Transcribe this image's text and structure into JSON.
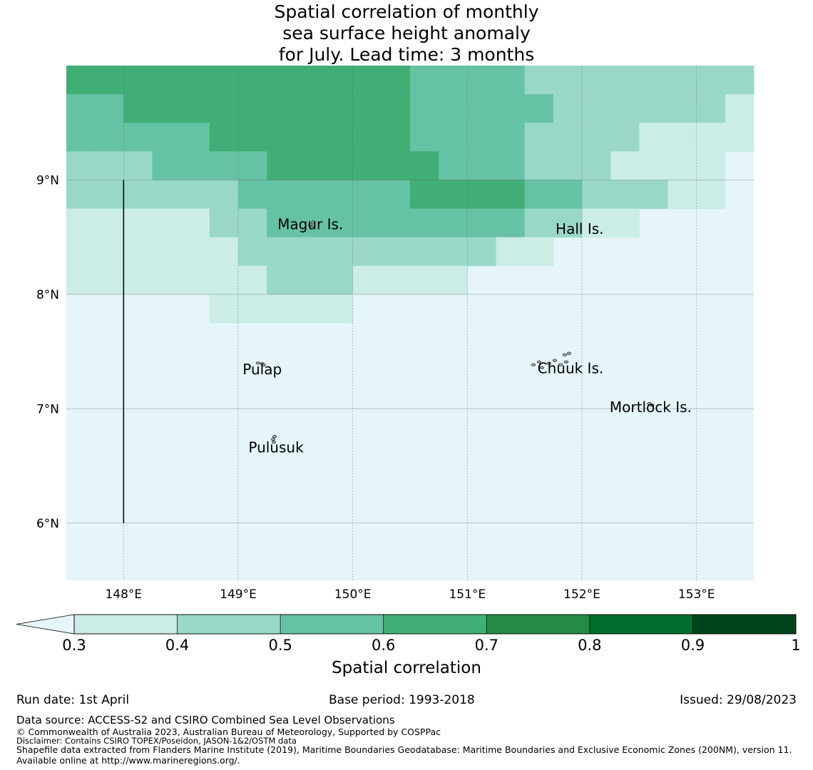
{
  "title_lines": [
    "Spatial correlation of monthly",
    "sea surface height anomaly",
    "for July. Lead time: 3 months"
  ],
  "map": {
    "lon_range": [
      147.5,
      153.5
    ],
    "lat_range": [
      5.5,
      10.0
    ],
    "lon_ticks": [
      148,
      149,
      150,
      151,
      152,
      153
    ],
    "lon_tick_labels": [
      "148°E",
      "149°E",
      "150°E",
      "151°E",
      "152°E",
      "153°E"
    ],
    "lat_ticks": [
      6,
      7,
      8,
      9
    ],
    "lat_tick_labels": [
      "6°N",
      "7°N",
      "8°N",
      "9°N"
    ],
    "grid": true,
    "boundary_line": {
      "lon": 148.0,
      "lat_from": 6.0,
      "lat_to": 9.0
    },
    "cell_lon_edges": [
      147.5,
      147.875,
      148.25,
      148.625,
      149.0,
      149.375,
      149.75,
      150.125,
      150.5,
      150.875,
      151.25,
      151.625,
      152.0,
      152.375,
      152.75,
      153.125,
      153.5
    ],
    "cell_lat_edges": [
      10.0,
      9.75,
      9.5,
      9.25,
      9.0,
      8.75,
      8.5,
      8.25,
      8.0,
      7.75,
      7.5,
      7.25,
      7.0,
      6.75,
      6.5,
      6.25,
      6.0,
      5.75,
      5.5
    ],
    "correlation_classes_by_row": [
      [
        4,
        4,
        4,
        4,
        4,
        4,
        4,
        4,
        4,
        4,
        4,
        4,
        3,
        3,
        3,
        3,
        2,
        2,
        2,
        2,
        2,
        2,
        2,
        2
      ],
      [
        3,
        3,
        4,
        4,
        4,
        4,
        4,
        4,
        4,
        4,
        4,
        4,
        3,
        3,
        3,
        3,
        3,
        2,
        2,
        2,
        2,
        2,
        2,
        1
      ],
      [
        3,
        3,
        3,
        3,
        3,
        4,
        4,
        4,
        4,
        4,
        4,
        4,
        3,
        3,
        3,
        3,
        2,
        2,
        2,
        2,
        1,
        1,
        1,
        1
      ],
      [
        2,
        2,
        2,
        3,
        3,
        3,
        3,
        4,
        4,
        4,
        4,
        4,
        4,
        3,
        3,
        3,
        2,
        2,
        2,
        1,
        1,
        1,
        1,
        0
      ],
      [
        2,
        2,
        2,
        2,
        2,
        2,
        3,
        3,
        3,
        3,
        3,
        3,
        4,
        4,
        4,
        4,
        3,
        3,
        2,
        2,
        2,
        1,
        1,
        0
      ],
      [
        1,
        1,
        1,
        1,
        1,
        2,
        2,
        3,
        3,
        3,
        3,
        3,
        3,
        3,
        3,
        3,
        2,
        2,
        1,
        1,
        0,
        0,
        0,
        0
      ],
      [
        1,
        1,
        1,
        1,
        1,
        1,
        2,
        2,
        2,
        2,
        2,
        2,
        2,
        2,
        2,
        1,
        1,
        0,
        0,
        0,
        0,
        0,
        0,
        0
      ],
      [
        1,
        1,
        1,
        1,
        1,
        1,
        1,
        2,
        2,
        2,
        1,
        1,
        1,
        1,
        0,
        0,
        0,
        0,
        0,
        0,
        0,
        0,
        0,
        0
      ],
      [
        0,
        0,
        0,
        0,
        0,
        1,
        1,
        1,
        1,
        1,
        0,
        0,
        0,
        0,
        0,
        0,
        0,
        0,
        0,
        0,
        0,
        0,
        0,
        0
      ]
    ],
    "correlation_class_row_lats": [
      10.0,
      9.75,
      9.5,
      9.25,
      9.0,
      8.75,
      8.5,
      8.25,
      8.0,
      7.75
    ],
    "correlation_class_lon_edges": [
      147.5,
      147.75,
      148.0,
      148.25,
      148.5,
      148.75,
      149.0,
      149.25,
      149.5,
      149.75,
      150.0,
      150.25,
      150.5,
      150.75,
      151.0,
      151.25,
      151.5,
      151.75,
      152.0,
      152.25,
      152.5,
      152.75,
      153.0,
      153.25,
      153.5
    ],
    "islands": [
      {
        "name": "Magur Is.",
        "lon": 149.63,
        "lat": 8.57
      },
      {
        "name": "Hall Is.",
        "lon": 151.98,
        "lat": 8.53
      },
      {
        "name": "Pulap",
        "lon": 149.21,
        "lat": 7.3
      },
      {
        "name": "Chuuk Is.",
        "lon": 151.9,
        "lat": 7.31
      },
      {
        "name": "Mortlock Is.",
        "lon": 152.6,
        "lat": 6.97
      },
      {
        "name": "Pulusuk",
        "lon": 149.33,
        "lat": 6.62
      }
    ]
  },
  "colorbar": {
    "label": "Spatial correlation",
    "bounds": [
      0.3,
      0.4,
      0.5,
      0.6,
      0.7,
      0.8,
      0.9,
      1.0
    ],
    "tick_labels": [
      "0.3",
      "0.4",
      "0.5",
      "0.6",
      "0.7",
      "0.8",
      "0.9",
      "1"
    ],
    "under_color": "#e5f5f9",
    "colors": [
      "#ccece6",
      "#99d8c9",
      "#66c2a4",
      "#41ae76",
      "#238b45",
      "#006d2c",
      "#00441b"
    ],
    "extend": "min"
  },
  "footer": {
    "run_date": "Run date: 1st April",
    "base_period": "Base period: 1993-2018",
    "issued": "Issued: 29/08/2023",
    "data_source": "Data source: ACCESS-S2 and CSIRO Combined Sea Level Observations",
    "copyright": "© Commonwealth of Australia 2023, Australian Bureau of Meteorology, Supported by COSPPac",
    "disclaimer": "Disclaimer: Contains CSIRO TOPEX/Poseidon, JASON-1&2/OSTM data",
    "shapefile": "Shapefile data extracted from Flanders Marine Institute (2019), Maritime Boundaries Geodatabase: Maritime Boundaries and Exclusive Economic Zones (200NM), version 11. Available online at http://www.marineregions.org/."
  }
}
